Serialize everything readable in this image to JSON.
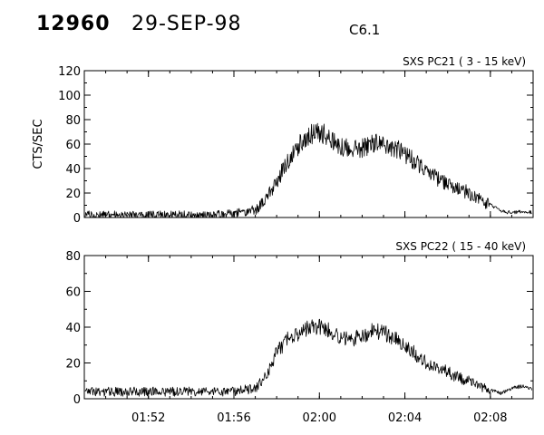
{
  "header": {
    "event": "12960",
    "date": "29-SEP-98",
    "flare_class": "C6.1"
  },
  "chart_data": [
    {
      "type": "line",
      "title": "SXS PC21  (  3 - 15 keV)",
      "ylabel": "CTS/SEC",
      "xlabel": "",
      "ylim": [
        0,
        120
      ],
      "yticks": [
        0,
        20,
        40,
        60,
        80,
        100,
        120
      ],
      "xlim": [
        "01:49",
        "02:10"
      ],
      "xticks": [
        "01:52",
        "01:56",
        "02:00",
        "02:04",
        "02:08"
      ],
      "xtick_labels_shown": false,
      "series": [
        {
          "x": [
            "01:49",
            "01:50",
            "01:51",
            "01:52",
            "01:53",
            "01:54",
            "01:55",
            "01:56",
            "01:57",
            "01:57:30",
            "01:58",
            "01:58:30",
            "01:59",
            "01:59:30",
            "02:00",
            "02:00:30",
            "02:01",
            "02:01:30",
            "02:02",
            "02:02:30",
            "02:03",
            "02:03:30",
            "02:04",
            "02:04:30",
            "02:05",
            "02:05:30",
            "02:06",
            "02:06:30",
            "02:07",
            "02:07:30",
            "02:08",
            "02:08:30",
            "02:09",
            "02:09:30",
            "02:10"
          ],
          "values": [
            2,
            2,
            2,
            2,
            2,
            2,
            2,
            3,
            6,
            14,
            30,
            45,
            58,
            68,
            70,
            65,
            58,
            56,
            57,
            60,
            60,
            57,
            52,
            45,
            38,
            32,
            28,
            24,
            20,
            15,
            10,
            5,
            4,
            5,
            4
          ]
        }
      ]
    },
    {
      "type": "line",
      "title": "SXS PC22  ( 15 - 40 keV)",
      "ylabel": "",
      "xlabel": "",
      "ylim": [
        0,
        80
      ],
      "yticks": [
        0,
        20,
        40,
        60,
        80
      ],
      "xlim": [
        "01:49",
        "02:10"
      ],
      "xticks": [
        "01:52",
        "01:56",
        "02:00",
        "02:04",
        "02:08"
      ],
      "xtick_labels_shown": true,
      "series": [
        {
          "x": [
            "01:49",
            "01:50",
            "01:51",
            "01:52",
            "01:53",
            "01:54",
            "01:55",
            "01:56",
            "01:57",
            "01:57:30",
            "01:58",
            "01:58:30",
            "01:59",
            "01:59:30",
            "02:00",
            "02:00:30",
            "02:01",
            "02:01:30",
            "02:02",
            "02:02:30",
            "02:03",
            "02:03:30",
            "02:04",
            "02:04:30",
            "02:05",
            "02:05:30",
            "02:06",
            "02:06:30",
            "02:07",
            "02:07:30",
            "02:08",
            "02:08:30",
            "02:09",
            "02:09:30",
            "02:10"
          ],
          "values": [
            4,
            4,
            4,
            4,
            4,
            4,
            4,
            4,
            6,
            12,
            26,
            33,
            36,
            40,
            40,
            38,
            35,
            33,
            35,
            38,
            37,
            34,
            30,
            25,
            20,
            17,
            15,
            12,
            10,
            7,
            5,
            3,
            6,
            7,
            5
          ]
        }
      ]
    }
  ]
}
